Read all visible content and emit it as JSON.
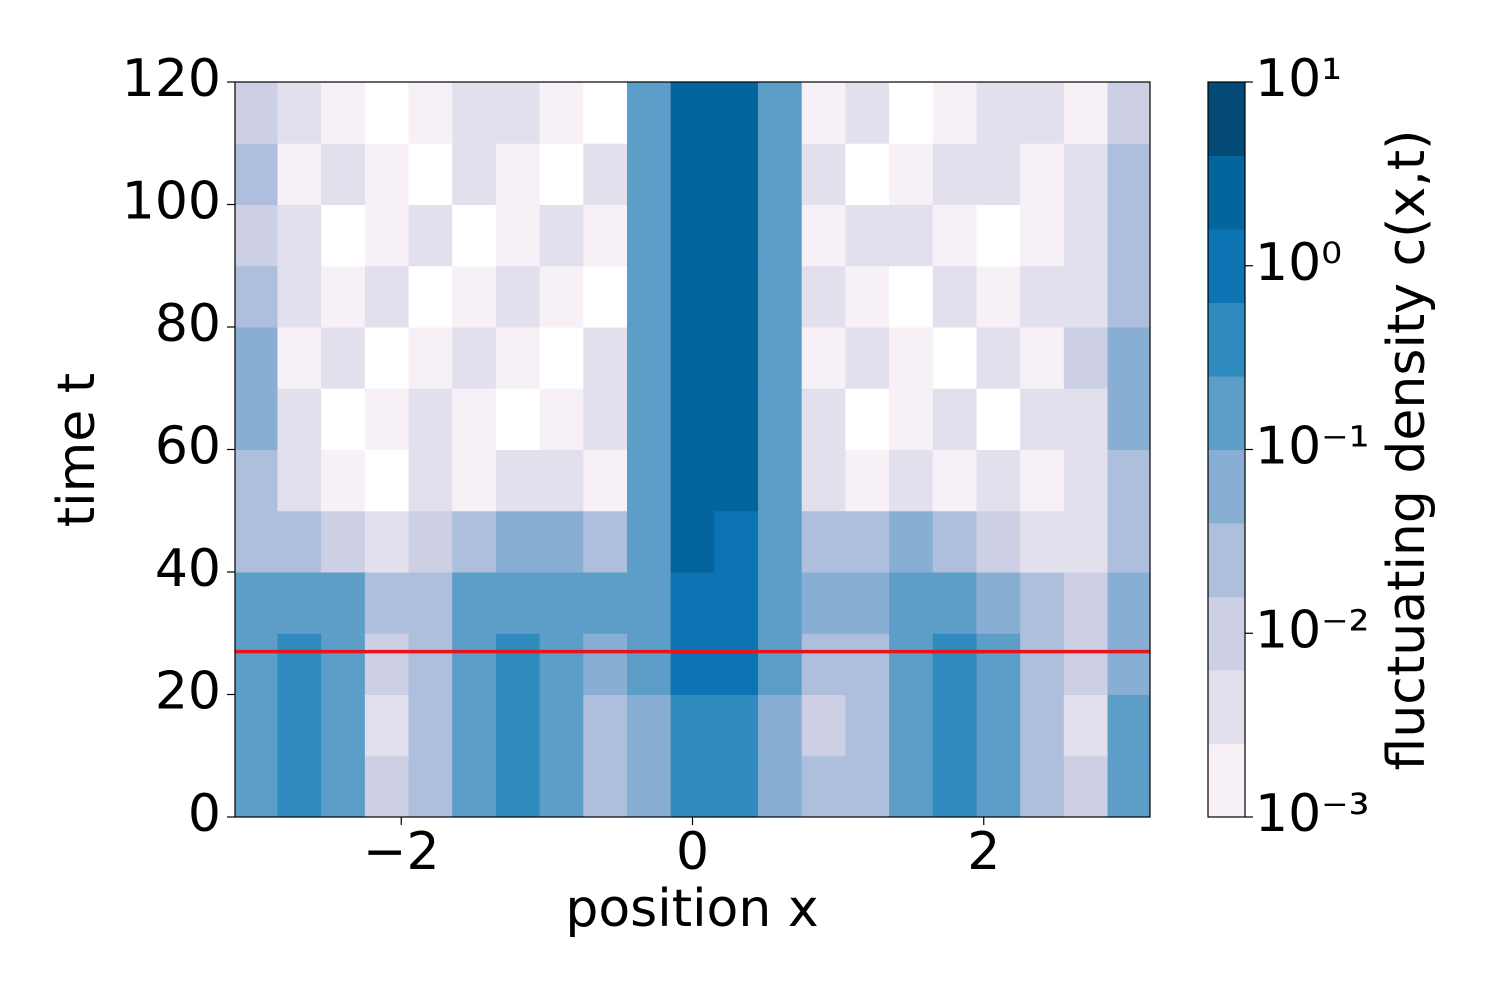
{
  "chart_data": {
    "type": "contourf",
    "xlabel": "position x",
    "ylabel": "time t",
    "xlim": [
      -3.1416,
      3.1416
    ],
    "ylim": [
      0,
      120
    ],
    "xticks": [
      {
        "value": -2,
        "label": "−2"
      },
      0,
      2
    ],
    "yticks": [
      0,
      20,
      40,
      60,
      80,
      100,
      120
    ],
    "x": [
      -3.0,
      -2.7,
      -2.4,
      -2.1,
      -1.8,
      -1.5,
      -1.2,
      -0.9,
      -0.6,
      -0.3,
      0,
      0.3,
      0.6,
      0.9,
      1.2,
      1.5,
      1.8,
      2.1,
      2.4,
      2.7,
      3.0
    ],
    "y": [
      5,
      15,
      25,
      35,
      45,
      55,
      65,
      75,
      85,
      95,
      105,
      115
    ],
    "z": [
      [
        0.15,
        0.35,
        0.15,
        0.01,
        0.03,
        0.12,
        0.45,
        0.12,
        0.03,
        0.06,
        0.4,
        0.35,
        0.08,
        0.02,
        0.03,
        0.12,
        0.4,
        0.12,
        0.03,
        0.008,
        0.1
      ],
      [
        0.2,
        0.35,
        0.12,
        0.005,
        0.02,
        0.1,
        0.5,
        0.1,
        0.02,
        0.05,
        0.45,
        0.3,
        0.06,
        0.01,
        0.02,
        0.1,
        0.35,
        0.1,
        0.02,
        0.005,
        0.1
      ],
      [
        0.2,
        0.3,
        0.1,
        0.008,
        0.02,
        0.12,
        0.35,
        0.12,
        0.04,
        0.1,
        0.8,
        0.7,
        0.1,
        0.02,
        0.03,
        0.12,
        0.3,
        0.12,
        0.03,
        0.01,
        0.08
      ],
      [
        0.15,
        0.2,
        0.1,
        0.02,
        0.03,
        0.1,
        0.25,
        0.15,
        0.1,
        0.15,
        0.8,
        0.9,
        0.15,
        0.05,
        0.05,
        0.12,
        0.25,
        0.08,
        0.02,
        0.01,
        0.05
      ],
      [
        0.03,
        0.02,
        0.01,
        0.005,
        0.01,
        0.03,
        0.05,
        0.04,
        0.02,
        0.1,
        3,
        1.5,
        0.1,
        0.02,
        0.03,
        0.04,
        0.03,
        0.01,
        0.005,
        0.005,
        0.03
      ],
      [
        0.03,
        0.005,
        0.002,
        0.0005,
        0.003,
        0.002,
        0.005,
        0.003,
        0.002,
        0.15,
        3,
        2,
        0.2,
        0.005,
        0.002,
        0.003,
        0.002,
        0.005,
        0.002,
        0.003,
        0.03
      ],
      [
        0.05,
        0.003,
        0.0005,
        0.002,
        0.005,
        0.002,
        0.0005,
        0.002,
        0.005,
        0.2,
        3.5,
        2.2,
        0.15,
        0.003,
        0.0005,
        0.002,
        0.005,
        0.0005,
        0.003,
        0.005,
        0.04
      ],
      [
        0.04,
        0.002,
        0.005,
        0.0005,
        0.002,
        0.003,
        0.002,
        0.0005,
        0.003,
        0.2,
        3.2,
        2,
        0.2,
        0.002,
        0.005,
        0.002,
        0.0005,
        0.003,
        0.002,
        0.01,
        0.05
      ],
      [
        0.02,
        0.005,
        0.002,
        0.003,
        0.0005,
        0.002,
        0.005,
        0.002,
        0.0005,
        0.15,
        3,
        2,
        0.15,
        0.005,
        0.002,
        0.0005,
        0.003,
        0.002,
        0.005,
        0.003,
        0.03
      ],
      [
        0.015,
        0.003,
        0.0005,
        0.002,
        0.005,
        0.0005,
        0.002,
        0.003,
        0.002,
        0.15,
        2.8,
        2.2,
        0.12,
        0.002,
        0.003,
        0.005,
        0.002,
        0.0005,
        0.002,
        0.005,
        0.02
      ],
      [
        0.03,
        0.002,
        0.005,
        0.002,
        0.0005,
        0.003,
        0.002,
        0.0005,
        0.003,
        0.12,
        2.5,
        2,
        0.1,
        0.003,
        0.0005,
        0.002,
        0.003,
        0.005,
        0.002,
        0.003,
        0.02
      ],
      [
        0.01,
        0.003,
        0.002,
        0.0005,
        0.002,
        0.005,
        0.003,
        0.002,
        0.0005,
        0.1,
        2.5,
        1.8,
        0.1,
        0.002,
        0.005,
        0.0005,
        0.002,
        0.003,
        0.005,
        0.002,
        0.015
      ]
    ],
    "hline": {
      "y": 27,
      "color": "#e8141c"
    },
    "colorbar": {
      "label": "fluctuating density c(x,t)",
      "scale": "log",
      "lim": [
        0.001,
        10
      ],
      "ticks": [
        {
          "value": 0.001,
          "label": "10⁻³"
        },
        {
          "value": 0.01,
          "label": "10⁻²"
        },
        {
          "value": 0.1,
          "label": "10⁻¹"
        },
        {
          "value": 1,
          "label": "10⁰"
        },
        {
          "value": 10,
          "label": "10¹"
        }
      ],
      "levels": [
        0.001,
        0.00251,
        0.00631,
        0.0158,
        0.0398,
        0.1,
        0.251,
        0.631,
        1.585,
        3.98,
        10
      ],
      "colors": [
        "#f7f0f7",
        "#e3e0ee",
        "#cdd0e5",
        "#adbfdc",
        "#89aed4",
        "#5d9ec9",
        "#2f8bbe",
        "#0c74b2",
        "#04649d",
        "#034b76"
      ]
    }
  }
}
